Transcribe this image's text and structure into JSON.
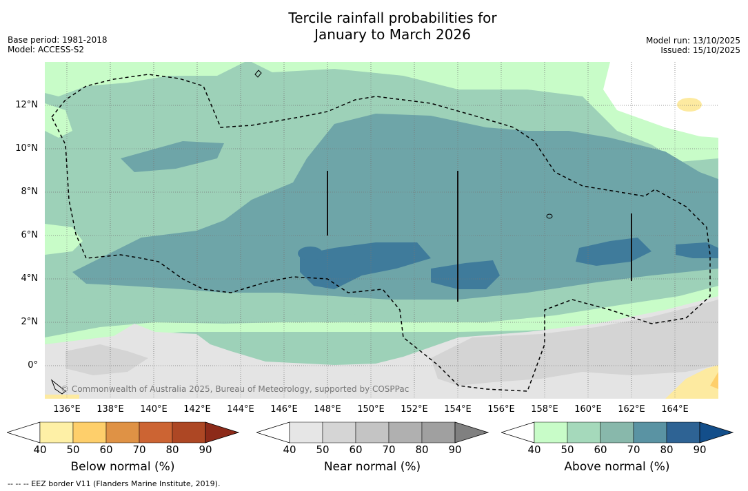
{
  "title_line1": "Tercile rainfall probabilities for",
  "title_line2": "January to March 2026",
  "base_period": "Base period: 1981-2018",
  "model": "Model: ACCESS-S2",
  "model_run": "Model run: 13/10/2025",
  "issued": "Issued: 15/10/2025",
  "copyright": "© Commonwealth of Australia 2025, Bureau of Meteorology, supported by COSPPac",
  "footnote": "-- -- -- EEZ border V11 (Flanders Marine Institute, 2019).",
  "latitude_labels": [
    "12°N",
    "10°N",
    "8°N",
    "6°N",
    "4°N",
    "2°N",
    "0°"
  ],
  "longitude_labels": [
    "136°E",
    "138°E",
    "140°E",
    "142°E",
    "144°E",
    "146°E",
    "148°E",
    "150°E",
    "152°E",
    "154°E",
    "156°E",
    "158°E",
    "160°E",
    "162°E",
    "164°E"
  ],
  "colorbars": {
    "below": {
      "title": "Below normal (%)",
      "ticks": [
        "40",
        "50",
        "60",
        "70",
        "80",
        "90"
      ],
      "colors": [
        "#fef0a6",
        "#fecf6b",
        "#df9245",
        "#cc6433",
        "#ad4724",
        "#8c2a19"
      ]
    },
    "near": {
      "title": "Near normal (%)",
      "ticks": [
        "40",
        "50",
        "60",
        "70",
        "80",
        "90"
      ],
      "colors": [
        "#e6e6e6",
        "#d5d5d5",
        "#c4c4c4",
        "#b0b0b0",
        "#a0a0a0",
        "#808080"
      ]
    },
    "above": {
      "title": "Above normal (%)",
      "ticks": [
        "40",
        "50",
        "60",
        "70",
        "80",
        "90"
      ],
      "colors": [
        "#c8fcc8",
        "#a5d9bb",
        "#88b8ab",
        "#5a93a3",
        "#2e6394",
        "#134e8a"
      ]
    }
  },
  "map_colors": {
    "above50": "#9dd1b8",
    "above40": "#c8fcc8",
    "above60": "#6ea5a8",
    "above70": "#3f7b9b",
    "near40": "#e4e4e4",
    "near50": "#d4d4d4",
    "below40": "#fdeaa0",
    "white": "#ffffff",
    "eez": "#000000"
  }
}
